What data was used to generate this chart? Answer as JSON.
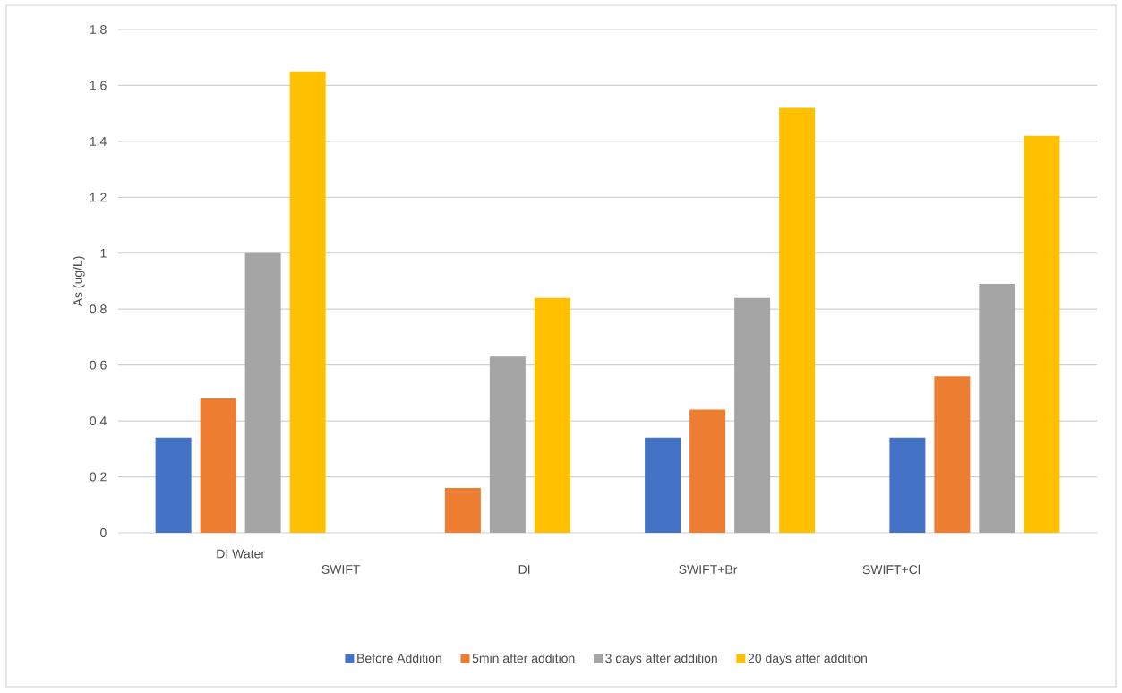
{
  "chart_data": {
    "type": "bar",
    "ylabel": "As (ug/L)",
    "categories": [
      "DI Water",
      null,
      null,
      null
    ],
    "series": [
      {
        "name": "Before Addition",
        "color": "#4472c4",
        "values": [
          0.34,
          null,
          0.34,
          0.34
        ]
      },
      {
        "name": "5min after addition",
        "color": "#ed7d31",
        "values": [
          0.48,
          0.16,
          0.44,
          0.56
        ]
      },
      {
        "name": "3 days after addition",
        "color": "#a5a5a5",
        "values": [
          1,
          0.63,
          0.84,
          0.89
        ]
      },
      {
        "name": "20 days after addition",
        "color": "#ffc000",
        "values": [
          1.65,
          0.84,
          1.52,
          1.42
        ]
      }
    ],
    "annotations": [
      "SWIFT",
      "DI",
      "SWIFT+Br",
      "SWIFT+Cl"
    ],
    "ylim": [
      0,
      1.8
    ],
    "yticks": [
      0,
      0.2,
      0.4,
      0.6,
      0.8,
      1,
      1.2,
      1.4,
      1.6,
      1.8
    ],
    "grid": "y",
    "legend": "bottom"
  }
}
